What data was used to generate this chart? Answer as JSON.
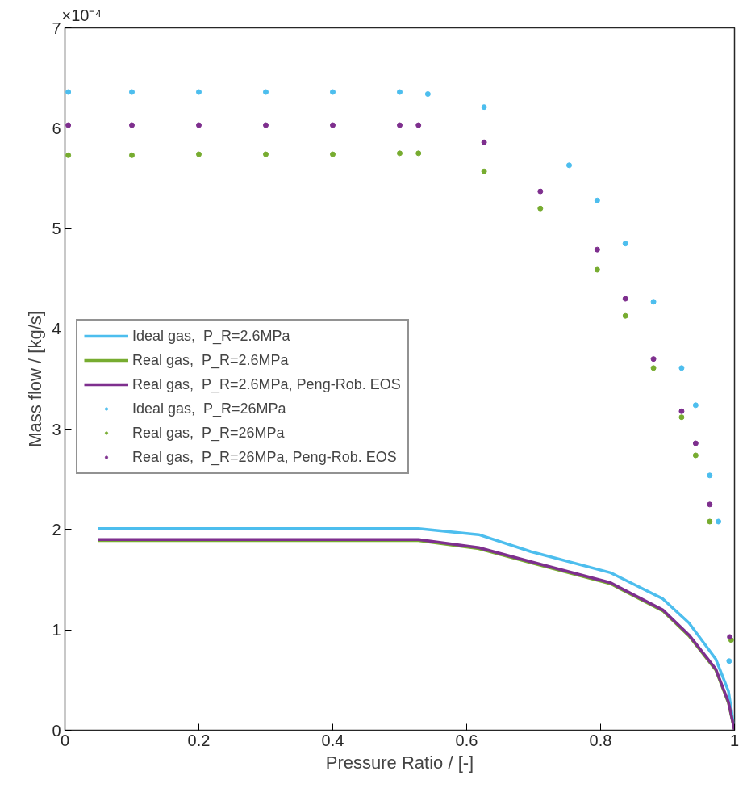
{
  "chart_data": {
    "type": "line",
    "xlabel": "Pressure Ratio / [-]",
    "ylabel": "Mass flow / [kg/s]",
    "annotations": [
      "×10⁻⁴"
    ],
    "xlim": [
      0,
      1
    ],
    "xticks": [
      0,
      0.2,
      0.4,
      0.6,
      0.8,
      1
    ],
    "ylim": [
      0,
      7
    ],
    "yticks": [
      0,
      1,
      2,
      3,
      4,
      5,
      6,
      7
    ],
    "grid": false,
    "legend": "left",
    "line_style": "solid",
    "series": [
      {
        "name": "Ideal gas,  P_R=2.6MPa",
        "color": "#4dbeee",
        "x": [
          0.05,
          0.2,
          0.4,
          0.528,
          0.618,
          0.696,
          0.815,
          0.893,
          0.932,
          0.972,
          0.991,
          1.0
        ],
        "values": [
          2.01,
          2.01,
          2.01,
          2.01,
          1.95,
          1.78,
          1.57,
          1.31,
          1.07,
          0.71,
          0.39,
          0
        ]
      },
      {
        "name": "Real gas,  P_R=2.6MPa",
        "color": "#77ac30",
        "x": [
          0.05,
          0.2,
          0.4,
          0.528,
          0.618,
          0.696,
          0.815,
          0.893,
          0.932,
          0.972,
          0.991,
          1.0
        ],
        "values": [
          1.89,
          1.89,
          1.89,
          1.89,
          1.81,
          1.67,
          1.46,
          1.19,
          0.94,
          0.6,
          0.27,
          0
        ]
      },
      {
        "name": "Real gas,  P_R=2.6MPa, Peng-Rob. EOS",
        "color": "#7e2f8e",
        "x": [
          0.05,
          0.2,
          0.4,
          0.528,
          0.618,
          0.696,
          0.815,
          0.893,
          0.932,
          0.972,
          0.991,
          1.0
        ],
        "values": [
          1.9,
          1.9,
          1.9,
          1.9,
          1.82,
          1.68,
          1.47,
          1.2,
          0.95,
          0.61,
          0.28,
          0
        ]
      },
      {
        "name": "Ideal gas,  P_R=26MPa",
        "color": "#4dbeee",
        "type": "scatter",
        "x": [
          0.005,
          0.1,
          0.2,
          0.3,
          0.4,
          0.5,
          0.542,
          0.626,
          0.753,
          0.795,
          0.837,
          0.879,
          0.921,
          0.942,
          0.963,
          0.976,
          0.992
        ],
        "values": [
          6.36,
          6.36,
          6.36,
          6.36,
          6.36,
          6.36,
          6.34,
          6.21,
          5.63,
          5.28,
          4.85,
          4.27,
          3.61,
          3.24,
          2.54,
          2.08,
          0.69
        ]
      },
      {
        "name": "Real gas,  P_R=26MPa",
        "color": "#77ac30",
        "type": "scatter",
        "x": [
          0.005,
          0.1,
          0.2,
          0.3,
          0.4,
          0.5,
          0.528,
          0.626,
          0.71,
          0.795,
          0.837,
          0.879,
          0.921,
          0.942,
          0.963,
          0.995
        ],
        "values": [
          5.73,
          5.73,
          5.74,
          5.74,
          5.74,
          5.75,
          5.75,
          5.57,
          5.2,
          4.59,
          4.13,
          3.61,
          3.12,
          2.74,
          2.08,
          0.9
        ]
      },
      {
        "name": "Real gas,  P_R=26MPa, Peng-Rob. EOS",
        "color": "#7e2f8e",
        "type": "scatter",
        "x": [
          0.005,
          0.1,
          0.2,
          0.3,
          0.4,
          0.5,
          0.528,
          0.626,
          0.71,
          0.795,
          0.837,
          0.879,
          0.921,
          0.942,
          0.963,
          0.993
        ],
        "values": [
          6.03,
          6.03,
          6.03,
          6.03,
          6.03,
          6.03,
          6.03,
          5.86,
          5.37,
          4.79,
          4.3,
          3.7,
          3.18,
          2.86,
          2.25,
          0.93
        ]
      }
    ]
  }
}
